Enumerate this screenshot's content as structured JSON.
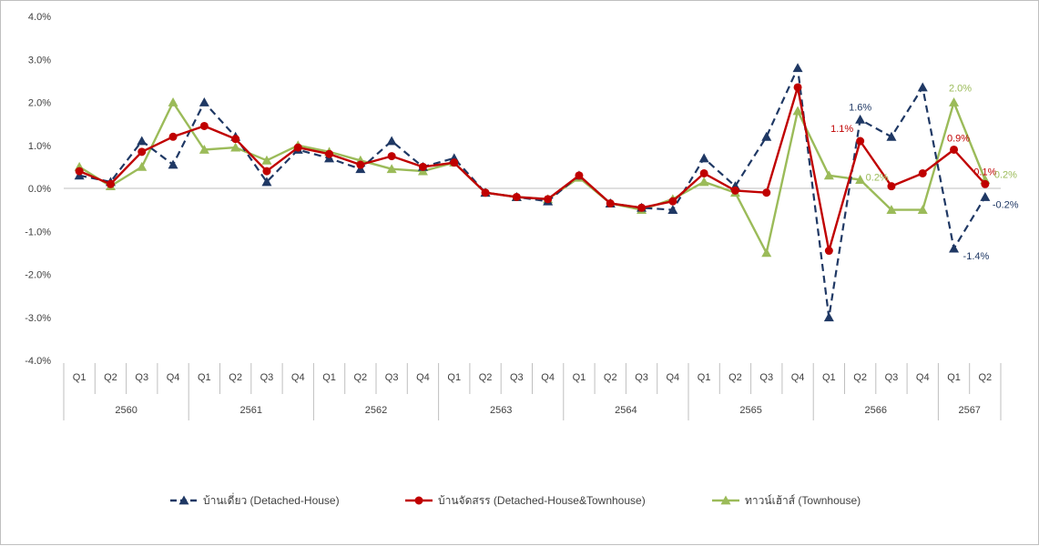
{
  "chart_data": {
    "type": "line",
    "y_axis": {
      "min": -4,
      "max": 4,
      "step": 1,
      "tick_labels": [
        "4.0%",
        "3.0%",
        "2.0%",
        "1.0%",
        "0.0%",
        "-1.0%",
        "-2.0%",
        "-3.0%",
        "-4.0%"
      ]
    },
    "x_axis": {
      "quarters": [
        "Q1",
        "Q2",
        "Q3",
        "Q4",
        "Q1",
        "Q2",
        "Q3",
        "Q4",
        "Q1",
        "Q2",
        "Q3",
        "Q4",
        "Q1",
        "Q2",
        "Q3",
        "Q4",
        "Q1",
        "Q2",
        "Q3",
        "Q4",
        "Q1",
        "Q2",
        "Q3",
        "Q4",
        "Q1",
        "Q2",
        "Q3",
        "Q4",
        "Q1",
        "Q2"
      ],
      "years": [
        {
          "label": "2560",
          "quarters": 4
        },
        {
          "label": "2561",
          "quarters": 4
        },
        {
          "label": "2562",
          "quarters": 4
        },
        {
          "label": "2563",
          "quarters": 4
        },
        {
          "label": "2564",
          "quarters": 4
        },
        {
          "label": "2565",
          "quarters": 4
        },
        {
          "label": "2566",
          "quarters": 4
        },
        {
          "label": "2567",
          "quarters": 2
        }
      ]
    },
    "grid": false,
    "legend_position": "bottom",
    "series": [
      {
        "name": "บ้านเดี่ยว (Detached-House)",
        "color": "#1f3864",
        "dash": true,
        "marker": "triangle",
        "values": [
          0.3,
          0.15,
          1.1,
          0.55,
          2.0,
          1.2,
          0.15,
          0.9,
          0.7,
          0.45,
          1.1,
          0.5,
          0.7,
          -0.1,
          -0.2,
          -0.3,
          0.3,
          -0.35,
          -0.45,
          -0.5,
          0.7,
          0.05,
          1.2,
          2.8,
          -3.0,
          1.6,
          1.2,
          2.35,
          -1.4,
          -0.2
        ],
        "data_labels": [
          {
            "index": 25,
            "text": "1.6%"
          },
          {
            "index": 28,
            "text": "-1.4%"
          },
          {
            "index": 29,
            "text": "-0.2%"
          }
        ]
      },
      {
        "name": "บ้านจัดสรร (Detached-House&Townhouse)",
        "color": "#c00000",
        "dash": false,
        "marker": "circle",
        "values": [
          0.4,
          0.1,
          0.85,
          1.2,
          1.45,
          1.15,
          0.4,
          0.95,
          0.8,
          0.55,
          0.75,
          0.5,
          0.6,
          -0.1,
          -0.2,
          -0.25,
          0.3,
          -0.35,
          -0.45,
          -0.3,
          0.35,
          -0.05,
          -0.1,
          2.35,
          -1.45,
          1.1,
          0.05,
          0.35,
          0.9,
          0.1
        ],
        "data_labels": [
          {
            "index": 25,
            "text": "1.1%"
          },
          {
            "index": 28,
            "text": "0.9%"
          },
          {
            "index": 29,
            "text": "0.1%"
          }
        ]
      },
      {
        "name": "ทาวน์เฮ้าส์ (Townhouse)",
        "color": "#9bbb59",
        "dash": false,
        "marker": "triangle",
        "values": [
          0.5,
          0.05,
          0.5,
          2.0,
          0.9,
          0.95,
          0.65,
          1.0,
          0.85,
          0.65,
          0.45,
          0.4,
          0.6,
          -0.1,
          -0.2,
          -0.25,
          0.25,
          -0.35,
          -0.5,
          -0.25,
          0.15,
          -0.1,
          -1.5,
          1.8,
          0.3,
          0.2,
          -0.5,
          -0.5,
          2.0,
          0.2
        ],
        "data_labels": [
          {
            "index": 25,
            "text": "0.2%"
          },
          {
            "index": 28,
            "text": "2.0%"
          },
          {
            "index": 29,
            "text": "0.2%"
          }
        ]
      }
    ]
  }
}
